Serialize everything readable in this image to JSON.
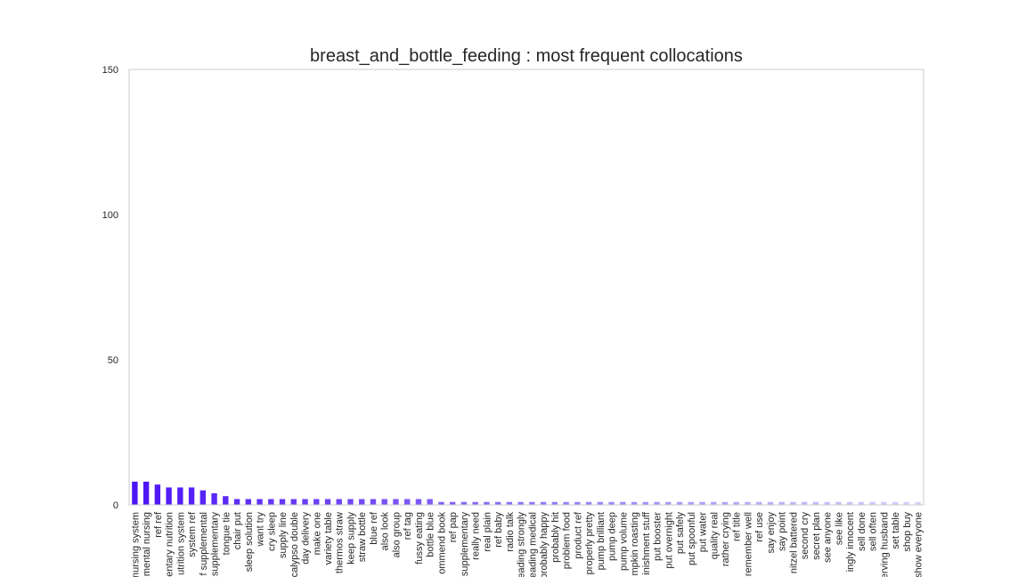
{
  "chart_data": {
    "type": "bar",
    "title": "breast_and_bottle_feeding : most frequent collocations",
    "xlabel": "",
    "ylabel": "",
    "ylim": [
      0,
      150
    ],
    "yticks": [
      0,
      50,
      100,
      150
    ],
    "grid": false,
    "colors": {
      "start": "#4b14f5",
      "end": "#d6d2fa",
      "axis": "#cccccc"
    },
    "categories": [
      "nursing system",
      "mental nursing",
      "ref ref",
      "entary nutrition",
      "utrition system",
      "system ref",
      "f supplemental",
      "supplementary",
      "tongue tie",
      "chair put",
      "sleep solution",
      "want try",
      "cry sleep",
      "supply line",
      "calypso double",
      "day delivery",
      "make one",
      "variety table",
      "thermos straw",
      "keep supply",
      "straw bottle",
      "blue ref",
      "also look",
      "also group",
      "ref tag",
      "fussy eating",
      "bottle blue",
      "ommend book",
      "ref pap",
      "supplementary",
      "really need",
      "real plain",
      "ref baby",
      "radio talk",
      "eading strongly",
      "eading medical",
      "probably happy",
      "probably hit",
      "problem food",
      "product ref",
      "properly pretty",
      "pump brilliant",
      "pump deep",
      "pump volume",
      "mpkin roasting",
      "inishment stuff",
      "put booster",
      "put overnight",
      "put safely",
      "put spoonful",
      "put water",
      "quality real",
      "rather crying",
      "ref title",
      "remember well",
      "ref use",
      "say enjoy",
      "say point",
      "nitzel battered",
      "second cry",
      "secret plan",
      "see anyone",
      "see like",
      "ingly innocent",
      "sell done",
      "sell often",
      "erving husband",
      "set table",
      "shop buy",
      "show everyone"
    ],
    "values": [
      8,
      8,
      7,
      6,
      6,
      6,
      5,
      4,
      3,
      2,
      2,
      2,
      2,
      2,
      2,
      2,
      2,
      2,
      2,
      2,
      2,
      2,
      2,
      2,
      2,
      2,
      2,
      1,
      1,
      1,
      1,
      1,
      1,
      1,
      1,
      1,
      1,
      1,
      1,
      1,
      1,
      1,
      1,
      1,
      1,
      1,
      1,
      1,
      1,
      1,
      1,
      1,
      1,
      1,
      1,
      1,
      1,
      1,
      1,
      1,
      1,
      1,
      1,
      1,
      1,
      1,
      1,
      1,
      1,
      1
    ]
  }
}
